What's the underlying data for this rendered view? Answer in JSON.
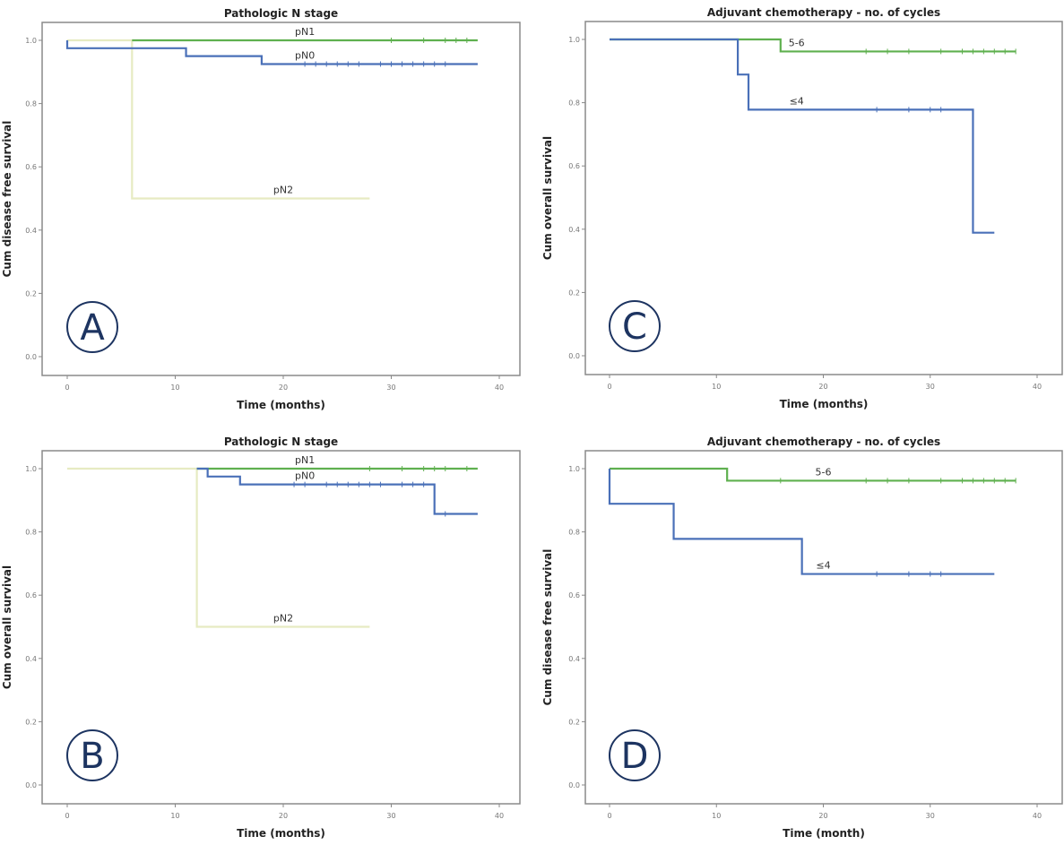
{
  "chart_data": [
    {
      "id": "A",
      "type": "line",
      "subtype": "kaplan-meier",
      "panel_letter": "A",
      "title": "Pathologic N stage",
      "xlabel": "Time (months)",
      "ylabel": "Cum disease free survival",
      "xlim": [
        0,
        40
      ],
      "ylim": [
        0,
        1.0
      ],
      "xticks": [
        "0",
        "10",
        "20",
        "30",
        "40"
      ],
      "yticks": [
        "0.0",
        "0.2",
        "0.4",
        "0.6",
        "0.8",
        "1.0"
      ],
      "grid": false,
      "series": [
        {
          "name": "pN2",
          "color": "#e6ebc2",
          "steps": [
            [
              0,
              1.0
            ],
            [
              6,
              0.5
            ]
          ],
          "end": 28,
          "censors": [],
          "label_at": [
            20,
            0.5
          ]
        },
        {
          "name": "pN1",
          "color": "#5fb04f",
          "steps": [
            [
              6,
              1.0
            ]
          ],
          "end": 38,
          "censors": [
            30,
            33,
            35,
            36,
            37
          ],
          "label_at": [
            22,
            1.0
          ]
        },
        {
          "name": "pN0",
          "color": "#4a70b8",
          "steps": [
            [
              0,
              1.0
            ],
            [
              0,
              0.975
            ],
            [
              11,
              0.95
            ],
            [
              18,
              0.925
            ]
          ],
          "end": 38,
          "censors": [
            22,
            23,
            24,
            25,
            26,
            27,
            29,
            30,
            31,
            32,
            33,
            34,
            35
          ],
          "label_at": [
            22,
            0.925
          ]
        }
      ]
    },
    {
      "id": "C",
      "type": "line",
      "subtype": "kaplan-meier",
      "panel_letter": "C",
      "title": "Adjuvant chemotherapy - no. of cycles",
      "xlabel": "Time (months)",
      "ylabel": "Cum overall survival",
      "xlim": [
        0,
        40
      ],
      "ylim": [
        0,
        1.0
      ],
      "xticks": [
        "0",
        "10",
        "20",
        "30",
        "40"
      ],
      "yticks": [
        "0.0",
        "0.2",
        "0.4",
        "0.6",
        "0.8",
        "1.0"
      ],
      "grid": false,
      "series": [
        {
          "name": "5-6",
          "color": "#5fb04f",
          "steps": [
            [
              0,
              1.0
            ],
            [
              16,
              0.962
            ]
          ],
          "end": 38,
          "censors": [
            24,
            26,
            28,
            31,
            33,
            34,
            35,
            36,
            37,
            38
          ],
          "label_at": [
            17.5,
            0.962
          ]
        },
        {
          "name": "≤4",
          "color": "#4a70b8",
          "steps": [
            [
              0,
              1.0
            ],
            [
              12,
              0.889
            ],
            [
              13,
              0.778
            ],
            [
              34,
              0.389
            ]
          ],
          "end": 36,
          "censors": [
            25,
            28,
            30,
            31
          ],
          "label_at": [
            17.5,
            0.778
          ]
        }
      ]
    },
    {
      "id": "B",
      "type": "line",
      "subtype": "kaplan-meier",
      "panel_letter": "B",
      "title": "Pathologic N stage",
      "xlabel": "Time (months)",
      "ylabel": "Cum overall survival",
      "xlim": [
        0,
        40
      ],
      "ylim": [
        0,
        1.0
      ],
      "xticks": [
        "0",
        "10",
        "20",
        "30",
        "40"
      ],
      "yticks": [
        "0.0",
        "0.2",
        "0.4",
        "0.6",
        "0.8",
        "1.0"
      ],
      "grid": false,
      "series": [
        {
          "name": "pN2",
          "color": "#e6ebc2",
          "steps": [
            [
              0,
              1.0
            ],
            [
              12,
              0.5
            ]
          ],
          "end": 28,
          "censors": [],
          "label_at": [
            20,
            0.5
          ]
        },
        {
          "name": "pN1",
          "color": "#5fb04f",
          "steps": [
            [
              12,
              1.0
            ]
          ],
          "end": 38,
          "censors": [
            28,
            31,
            33,
            34,
            35,
            37
          ],
          "label_at": [
            22,
            1.0
          ]
        },
        {
          "name": "pN0",
          "color": "#4a70b8",
          "steps": [
            [
              12,
              1.0
            ],
            [
              13,
              0.975
            ],
            [
              16,
              0.95
            ],
            [
              34,
              0.857
            ]
          ],
          "end": 38,
          "censors": [
            21,
            22,
            24,
            25,
            26,
            27,
            28,
            29,
            31,
            32,
            33,
            35
          ],
          "label_at": [
            22,
            0.95
          ]
        }
      ]
    },
    {
      "id": "D",
      "type": "line",
      "subtype": "kaplan-meier",
      "panel_letter": "D",
      "title": "Adjuvant chemotherapy - no. of cycles",
      "xlabel": "Time (month)",
      "ylabel": "Cum disease free survival",
      "xlim": [
        0,
        40
      ],
      "ylim": [
        0,
        1.0
      ],
      "xticks": [
        "0",
        "10",
        "20",
        "30",
        "40"
      ],
      "yticks": [
        "0.0",
        "0.2",
        "0.4",
        "0.6",
        "0.8",
        "1.0"
      ],
      "grid": false,
      "series": [
        {
          "name": "5-6",
          "color": "#5fb04f",
          "steps": [
            [
              0,
              1.0
            ],
            [
              11,
              0.962
            ]
          ],
          "end": 38,
          "censors": [
            16,
            24,
            26,
            28,
            31,
            33,
            34,
            35,
            36,
            37,
            38
          ],
          "label_at": [
            20,
            0.962
          ]
        },
        {
          "name": "≤4",
          "color": "#4a70b8",
          "steps": [
            [
              0,
              1.0
            ],
            [
              0,
              0.889
            ],
            [
              6,
              0.778
            ],
            [
              18,
              0.667
            ]
          ],
          "end": 36,
          "censors": [
            25,
            28,
            30,
            31
          ],
          "label_at": [
            20,
            0.667
          ]
        }
      ]
    }
  ]
}
